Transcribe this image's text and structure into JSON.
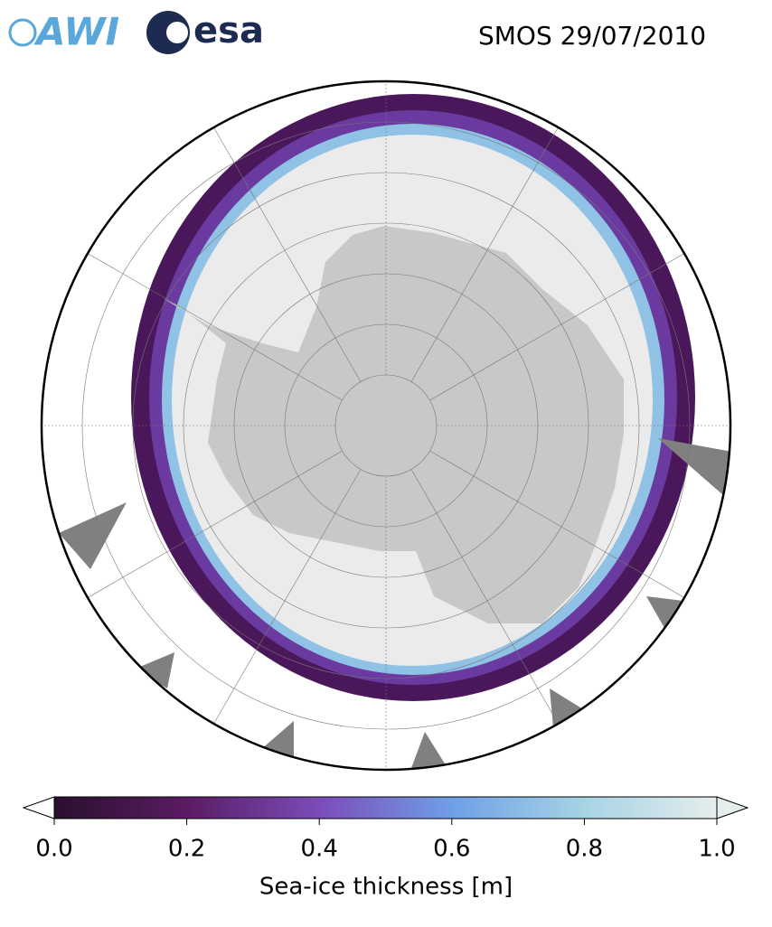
{
  "header": {
    "logos": [
      "AWI",
      "esa"
    ],
    "title": "SMOS 29/07/2010"
  },
  "colorbar": {
    "label": "Sea-ice thickness [m]",
    "lim": [
      0,
      1
    ],
    "ticks": [
      {
        "value": 0,
        "label": "0.0"
      },
      {
        "value": 0.2,
        "label": "0.2"
      },
      {
        "value": 0.4,
        "label": "0.4"
      },
      {
        "value": 0.6,
        "label": "0.6"
      },
      {
        "value": 0.8,
        "label": "0.8"
      },
      {
        "value": 1,
        "label": "1.0"
      }
    ],
    "colors": [
      "#2a0f2e",
      "#5a1c63",
      "#7b4cb8",
      "#6f9fe6",
      "#a6d4e4",
      "#e4eeed"
    ],
    "extend": "both"
  }
}
